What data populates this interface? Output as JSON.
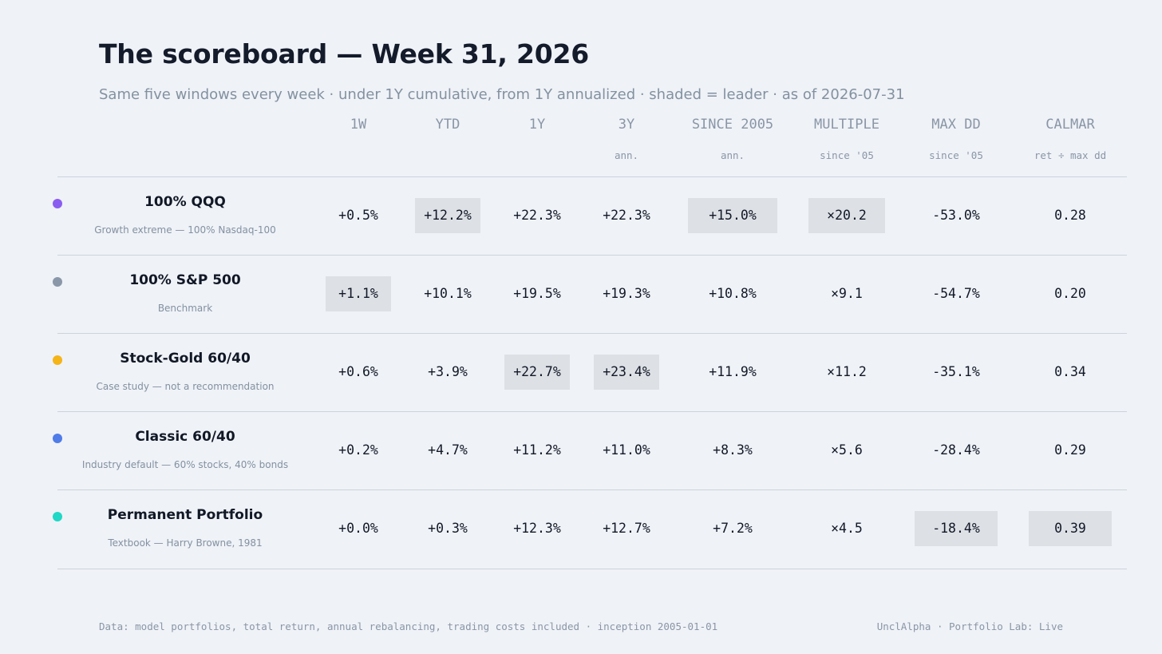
{
  "header": {
    "title": "The scoreboard — Week 31, 2026",
    "subtitle": "Same five windows every week · under 1Y cumulative, from 1Y annualized · shaded = leader · as of 2026-07-31"
  },
  "columns": [
    {
      "label": "1W",
      "sub": ""
    },
    {
      "label": "YTD",
      "sub": ""
    },
    {
      "label": "1Y",
      "sub": ""
    },
    {
      "label": "3Y",
      "sub": "ann."
    },
    {
      "label": "SINCE 2005",
      "sub": "ann."
    },
    {
      "label": "MULTIPLE",
      "sub": "since '05"
    },
    {
      "label": "MAX DD",
      "sub": "since '05"
    },
    {
      "label": "CALMAR",
      "sub": "ret ÷ max dd"
    }
  ],
  "rows": [
    {
      "name": "100% QQQ",
      "description": "Growth extreme — 100% Nasdaq-100",
      "color": "#8b5cf0",
      "values": [
        "+0.5%",
        "+12.2%",
        "+22.3%",
        "+22.3%",
        "+15.0%",
        "×20.2",
        "-53.0%",
        "0.28"
      ],
      "leaders": [
        false,
        true,
        false,
        false,
        true,
        true,
        false,
        false
      ]
    },
    {
      "name": "100% S&P 500",
      "description": "Benchmark",
      "color": "#8997a8",
      "values": [
        "+1.1%",
        "+10.1%",
        "+19.5%",
        "+19.3%",
        "+10.8%",
        "×9.1",
        "-54.7%",
        "0.20"
      ],
      "leaders": [
        true,
        false,
        false,
        false,
        false,
        false,
        false,
        false
      ]
    },
    {
      "name": "Stock-Gold 60/40",
      "description": "Case study — not a recommendation",
      "color": "#f5b418",
      "values": [
        "+0.6%",
        "+3.9%",
        "+22.7%",
        "+23.4%",
        "+11.9%",
        "×11.2",
        "-35.1%",
        "0.34"
      ],
      "leaders": [
        false,
        false,
        true,
        true,
        false,
        false,
        false,
        false
      ]
    },
    {
      "name": "Classic 60/40",
      "description": "Industry default — 60% stocks, 40% bonds",
      "color": "#4f7ce8",
      "values": [
        "+0.2%",
        "+4.7%",
        "+11.2%",
        "+11.0%",
        "+8.3%",
        "×5.6",
        "-28.4%",
        "0.29"
      ],
      "leaders": [
        false,
        false,
        false,
        false,
        false,
        false,
        false,
        false
      ]
    },
    {
      "name": "Permanent Portfolio",
      "description": "Textbook — Harry Browne, 1981",
      "color": "#1fd8c6",
      "values": [
        "+0.0%",
        "+0.3%",
        "+12.3%",
        "+12.7%",
        "+7.2%",
        "×4.5",
        "-18.4%",
        "0.39"
      ],
      "leaders": [
        false,
        false,
        false,
        false,
        false,
        false,
        true,
        true
      ]
    }
  ],
  "footer": {
    "left": "Data: model portfolios, total return, annual rebalancing, trading costs included · inception 2005-01-01",
    "right": "UnclAlpha · Portfolio Lab: Live"
  }
}
